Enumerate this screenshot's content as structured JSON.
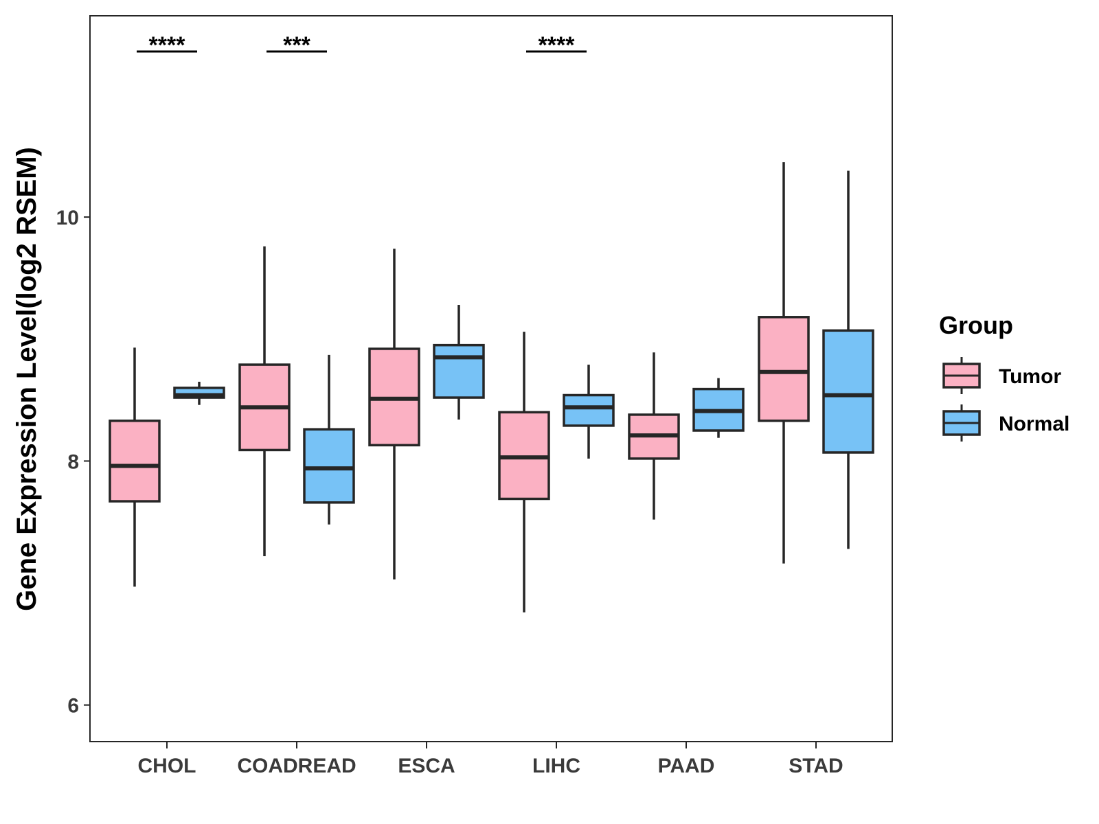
{
  "colors": {
    "tumor": "#fbb1c3",
    "normal": "#77c2f6",
    "stroke": "#262626"
  },
  "chart_data": {
    "type": "boxplot",
    "ylabel": "Gene Expression Level(log2 RSEM)",
    "xlabel": "",
    "ylim": [
      5.7,
      11.65
    ],
    "yticks": [
      6,
      8,
      10
    ],
    "categories": [
      "CHOL",
      "COADREAD",
      "ESCA",
      "LIHC",
      "PAAD",
      "STAD"
    ],
    "series": [
      {
        "name": "Tumor",
        "boxes": [
          {
            "min": 6.97,
            "q1": 7.67,
            "median": 7.96,
            "q3": 8.33,
            "max": 8.93
          },
          {
            "min": 7.22,
            "q1": 8.09,
            "median": 8.44,
            "q3": 8.79,
            "max": 9.76
          },
          {
            "min": 7.03,
            "q1": 8.13,
            "median": 8.51,
            "q3": 8.92,
            "max": 9.74
          },
          {
            "min": 6.76,
            "q1": 7.69,
            "median": 8.03,
            "q3": 8.4,
            "max": 9.06
          },
          {
            "min": 7.52,
            "q1": 8.02,
            "median": 8.21,
            "q3": 8.38,
            "max": 8.89
          },
          {
            "min": 7.16,
            "q1": 8.33,
            "median": 8.73,
            "q3": 9.18,
            "max": 10.45
          }
        ]
      },
      {
        "name": "Normal",
        "boxes": [
          {
            "min": 8.46,
            "q1": 8.52,
            "median": 8.54,
            "q3": 8.6,
            "max": 8.65
          },
          {
            "min": 7.48,
            "q1": 7.66,
            "median": 7.94,
            "q3": 8.26,
            "max": 8.87
          },
          {
            "min": 8.34,
            "q1": 8.52,
            "median": 8.85,
            "q3": 8.95,
            "max": 9.28
          },
          {
            "min": 8.02,
            "q1": 8.29,
            "median": 8.44,
            "q3": 8.54,
            "max": 8.79
          },
          {
            "min": 8.19,
            "q1": 8.25,
            "median": 8.41,
            "q3": 8.59,
            "max": 8.68
          },
          {
            "min": 7.28,
            "q1": 8.07,
            "median": 8.54,
            "q3": 9.07,
            "max": 10.38
          }
        ]
      }
    ],
    "significance": [
      {
        "category": "CHOL",
        "label": "****"
      },
      {
        "category": "COADREAD",
        "label": "***"
      },
      {
        "category": "LIHC",
        "label": "****"
      }
    ],
    "legend": {
      "title": "Group",
      "entries": [
        "Tumor",
        "Normal"
      ],
      "position": "right"
    }
  }
}
